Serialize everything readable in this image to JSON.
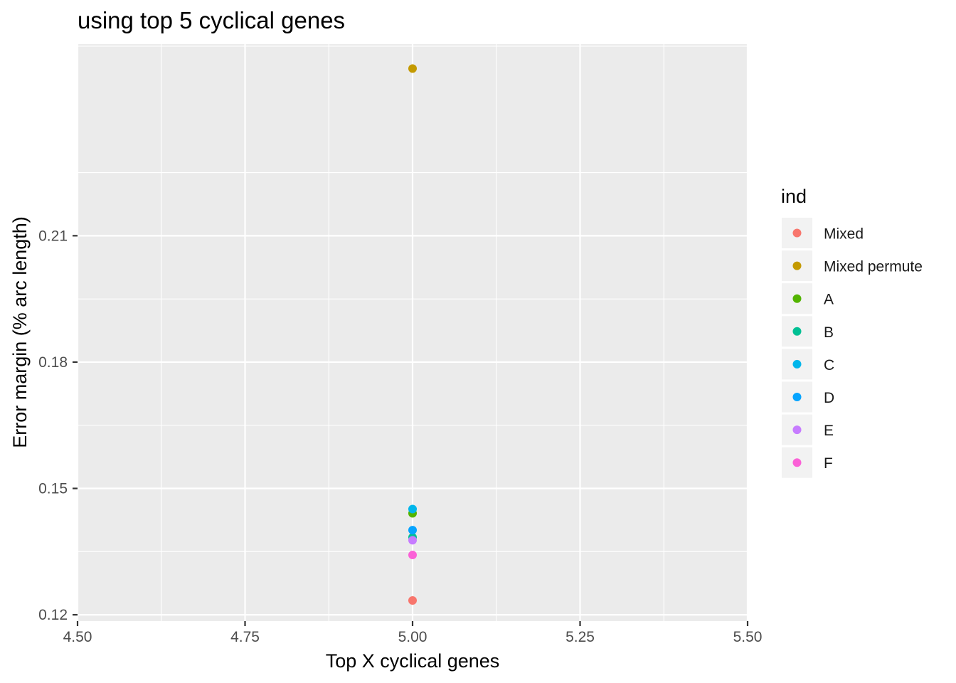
{
  "chart_data": {
    "type": "scatter",
    "title": "using top 5 cyclical genes",
    "xlabel": "Top X cyclical genes",
    "ylabel": "Error margin (% arc length)",
    "xlim": [
      4.5,
      5.5
    ],
    "ylim": [
      0.1185,
      0.2555
    ],
    "x_ticks": [
      4.5,
      4.75,
      5.0,
      5.25,
      5.5
    ],
    "x_tick_labels": [
      "4.50",
      "4.75",
      "5.00",
      "5.25",
      "5.50"
    ],
    "y_ticks": [
      0.12,
      0.15,
      0.18,
      0.21
    ],
    "y_tick_labels": [
      "0.12",
      "0.15",
      "0.18",
      "0.21"
    ],
    "grid": true,
    "legend_title": "ind",
    "legend_position": "right",
    "series": [
      {
        "name": "Mixed",
        "color": "#F8766D",
        "x": [
          5
        ],
        "y": [
          0.1234
        ]
      },
      {
        "name": "Mixed permute",
        "color": "#C49A00",
        "x": [
          5
        ],
        "y": [
          0.2497
        ]
      },
      {
        "name": "A",
        "color": "#53B400",
        "x": [
          5
        ],
        "y": [
          0.1441
        ]
      },
      {
        "name": "B",
        "color": "#00C094",
        "x": [
          5
        ],
        "y": [
          0.1384
        ]
      },
      {
        "name": "C",
        "color": "#00B6EB",
        "x": [
          5
        ],
        "y": [
          0.1451
        ]
      },
      {
        "name": "D",
        "color": "#06A4FF",
        "x": [
          5
        ],
        "y": [
          0.1401
        ]
      },
      {
        "name": "E",
        "color": "#C77CFF",
        "x": [
          5
        ],
        "y": [
          0.1377
        ]
      },
      {
        "name": "F",
        "color": "#FB61D7",
        "x": [
          5
        ],
        "y": [
          0.1342
        ]
      }
    ]
  }
}
